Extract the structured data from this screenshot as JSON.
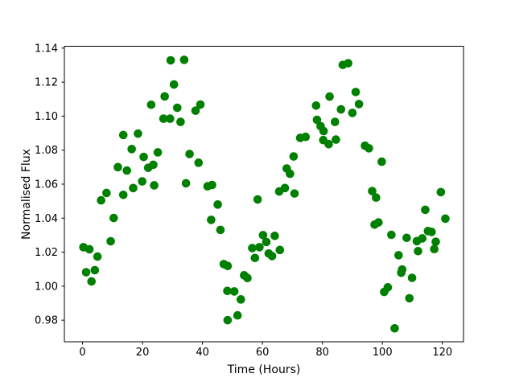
{
  "chart_data": {
    "type": "scatter",
    "title": "",
    "xlabel": "Time (Hours)",
    "ylabel": "Normalised Flux",
    "xlim": [
      -6.05,
      127.05
    ],
    "ylim": [
      0.9673,
      1.1411
    ],
    "xticks": [
      0,
      20,
      40,
      60,
      80,
      100,
      120
    ],
    "yticks": [
      0.98,
      1.0,
      1.02,
      1.04,
      1.06,
      1.08,
      1.1,
      1.12,
      1.14
    ],
    "grid": false,
    "legend": null,
    "marker": {
      "shape": "circle",
      "color": "#008000",
      "radius_px": 5.3
    },
    "frame_color": "#000000",
    "background_color": "#ffffff",
    "points": [
      [
        0.3,
        1.0229
      ],
      [
        1.2,
        1.0082
      ],
      [
        2.3,
        1.0217
      ],
      [
        3.0,
        1.0028
      ],
      [
        4.1,
        1.0094
      ],
      [
        5.0,
        1.0174
      ],
      [
        6.2,
        1.0505
      ],
      [
        8.0,
        1.0548
      ],
      [
        9.4,
        1.0264
      ],
      [
        10.4,
        1.0401
      ],
      [
        11.8,
        1.07
      ],
      [
        13.6,
        1.0537
      ],
      [
        13.6,
        1.0889
      ],
      [
        14.8,
        1.068
      ],
      [
        16.4,
        1.0806
      ],
      [
        16.9,
        1.0577
      ],
      [
        18.5,
        1.0897
      ],
      [
        19.9,
        1.0616
      ],
      [
        20.4,
        1.076
      ],
      [
        21.9,
        1.0696
      ],
      [
        22.9,
        1.1067
      ],
      [
        23.6,
        1.0714
      ],
      [
        23.9,
        1.0593
      ],
      [
        25.1,
        1.0787
      ],
      [
        27.0,
        1.0985
      ],
      [
        27.4,
        1.1116
      ],
      [
        29.2,
        1.0985
      ],
      [
        29.4,
        1.1328
      ],
      [
        30.5,
        1.1186
      ],
      [
        31.6,
        1.1049
      ],
      [
        32.7,
        1.0966
      ],
      [
        33.9,
        1.1331
      ],
      [
        34.5,
        1.0605
      ],
      [
        35.7,
        1.0777
      ],
      [
        37.7,
        1.1032
      ],
      [
        38.7,
        1.0726
      ],
      [
        39.3,
        1.1068
      ],
      [
        41.7,
        1.0587
      ],
      [
        42.9,
        1.039
      ],
      [
        43.2,
        1.0595
      ],
      [
        45.1,
        1.048
      ],
      [
        46.0,
        1.0331
      ],
      [
        47.1,
        1.013
      ],
      [
        48.3,
        0.9972
      ],
      [
        48.4,
        1.0119
      ],
      [
        48.4,
        0.98
      ],
      [
        50.6,
        0.9969
      ],
      [
        51.7,
        0.9828
      ],
      [
        52.8,
        0.9922
      ],
      [
        53.9,
        1.0064
      ],
      [
        55.0,
        1.0048
      ],
      [
        56.6,
        1.0224
      ],
      [
        57.5,
        1.0166
      ],
      [
        58.4,
        1.051
      ],
      [
        59.0,
        1.0229
      ],
      [
        60.2,
        1.03
      ],
      [
        61.3,
        1.026
      ],
      [
        62.1,
        1.0192
      ],
      [
        63.2,
        1.0177
      ],
      [
        64.1,
        1.0296
      ],
      [
        65.6,
        1.0557
      ],
      [
        65.8,
        1.0213
      ],
      [
        67.5,
        1.0577
      ],
      [
        68.1,
        1.0692
      ],
      [
        69.2,
        1.0661
      ],
      [
        70.4,
        1.0763
      ],
      [
        70.7,
        1.0545
      ],
      [
        72.6,
        1.0872
      ],
      [
        74.4,
        1.0878
      ],
      [
        77.9,
        1.1062
      ],
      [
        78.2,
        1.0978
      ],
      [
        79.4,
        1.0941
      ],
      [
        80.3,
        1.0859
      ],
      [
        80.4,
        1.0912
      ],
      [
        82.1,
        1.0835
      ],
      [
        82.4,
        1.1115
      ],
      [
        84.2,
        1.0966
      ],
      [
        84.5,
        1.0862
      ],
      [
        86.2,
        1.104
      ],
      [
        86.8,
        1.1301
      ],
      [
        88.6,
        1.1311
      ],
      [
        90.0,
        1.1019
      ],
      [
        91.1,
        1.1142
      ],
      [
        92.2,
        1.1071
      ],
      [
        94.2,
        1.0826
      ],
      [
        95.5,
        1.0811
      ],
      [
        96.6,
        1.0559
      ],
      [
        97.4,
        1.0362
      ],
      [
        97.9,
        1.0521
      ],
      [
        98.7,
        1.0375
      ],
      [
        99.8,
        1.0732
      ],
      [
        100.6,
        0.9966
      ],
      [
        101.8,
        0.9993
      ],
      [
        103.0,
        1.0302
      ],
      [
        104.1,
        0.9752
      ],
      [
        105.4,
        1.0182
      ],
      [
        106.3,
        1.0079
      ],
      [
        106.6,
        1.0098
      ],
      [
        108.1,
        1.0284
      ],
      [
        109.0,
        0.9929
      ],
      [
        109.9,
        1.0049
      ],
      [
        111.5,
        1.0265
      ],
      [
        111.9,
        1.0206
      ],
      [
        113.3,
        1.0281
      ],
      [
        114.3,
        1.0449
      ],
      [
        115.2,
        1.0324
      ],
      [
        116.4,
        1.0319
      ],
      [
        117.3,
        1.0218
      ],
      [
        117.8,
        1.0261
      ],
      [
        119.5,
        1.0553
      ],
      [
        121.0,
        1.0397
      ]
    ]
  }
}
